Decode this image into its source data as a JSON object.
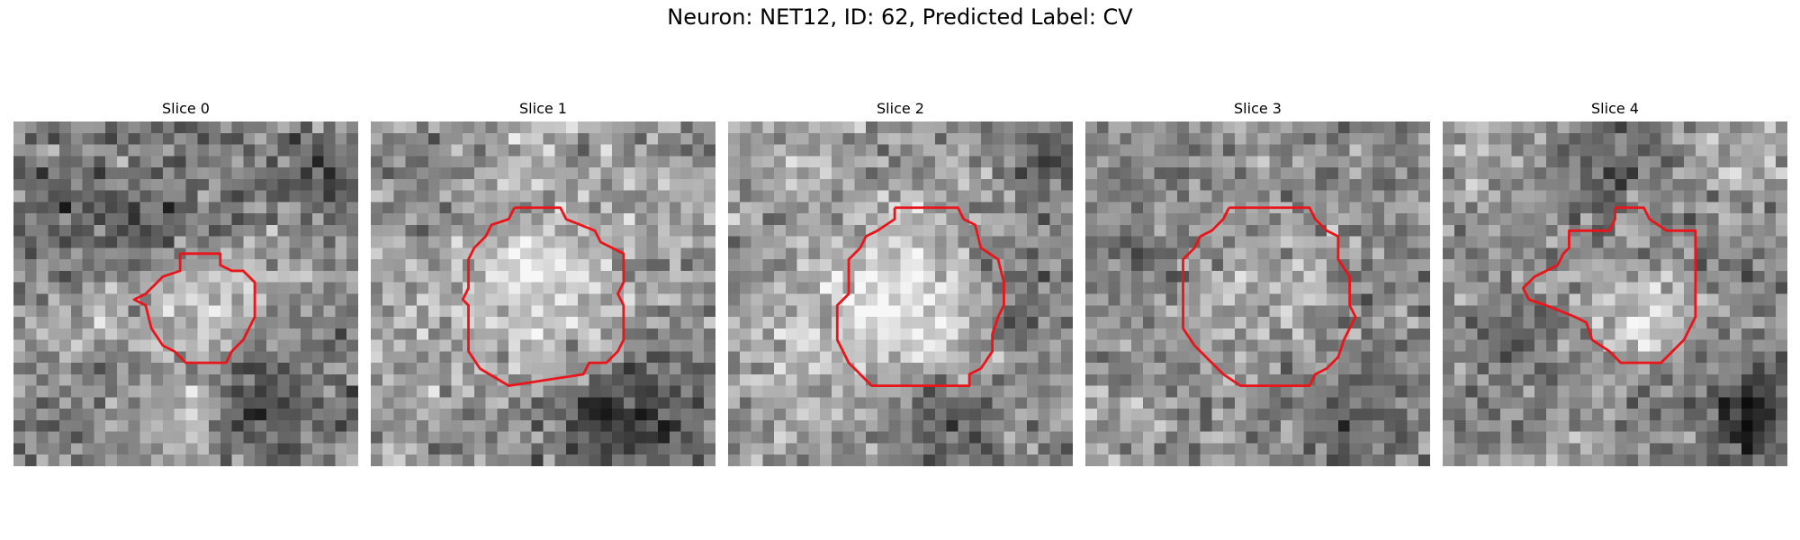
{
  "figure": {
    "title": "Neuron: NET12, ID: 62, Predicted Label: CV"
  },
  "panels": [
    {
      "title": "Slice 0",
      "contour_color": "#e8151b"
    },
    {
      "title": "Slice 1",
      "contour_color": "#e8151b"
    },
    {
      "title": "Slice 2",
      "contour_color": "#e8151b"
    },
    {
      "title": "Slice 3",
      "contour_color": "#e8151b"
    },
    {
      "title": "Slice 4",
      "contour_color": "#e8151b"
    }
  ]
}
